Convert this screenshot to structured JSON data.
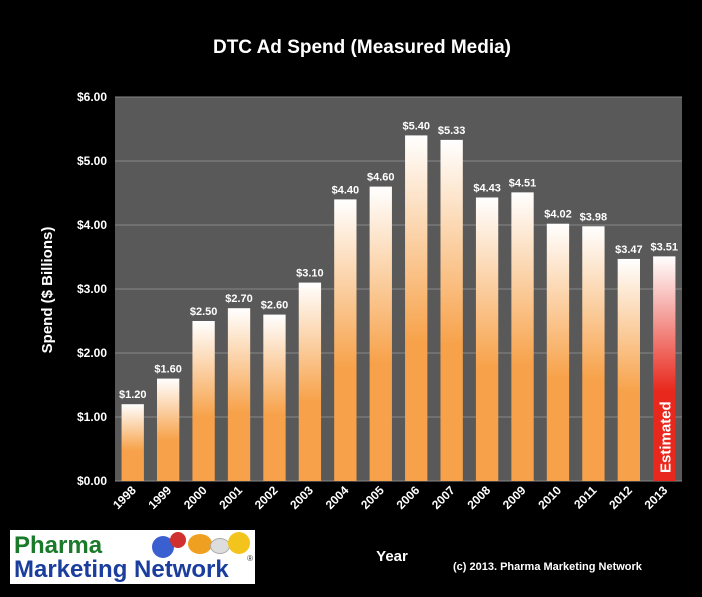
{
  "chart_data": {
    "type": "bar",
    "title": "DTC Ad Spend (Measured Media)",
    "xlabel": "Year",
    "ylabel": "Spend ($ Billions)",
    "ylim": [
      0,
      6
    ],
    "yticks": [
      "$0.00",
      "$1.00",
      "$2.00",
      "$3.00",
      "$4.00",
      "$5.00",
      "$6.00"
    ],
    "grid": true,
    "categories": [
      "1998",
      "1999",
      "2000",
      "2001",
      "2002",
      "2003",
      "2004",
      "2005",
      "2006",
      "2007",
      "2008",
      "2009",
      "2010",
      "2011",
      "2012",
      "2013"
    ],
    "values": [
      1.2,
      1.6,
      2.5,
      2.7,
      2.6,
      3.1,
      4.4,
      4.6,
      5.4,
      5.33,
      4.43,
      4.51,
      4.02,
      3.98,
      3.47,
      3.51
    ],
    "labels": [
      "$1.20",
      "$1.60",
      "$2.50",
      "$2.70",
      "$2.60",
      "$3.10",
      "$4.40",
      "$4.60",
      "$5.40",
      "$5.33",
      "$4.43",
      "$4.51",
      "$4.02",
      "$3.98",
      "$3.47",
      "$3.51"
    ],
    "estimated_index": 15,
    "estimated_label": "Estimated",
    "colors": {
      "bar_top": "#ffffff",
      "bar_bottom": "#f7a24a",
      "estimated_bar": "#e8281c",
      "plot_bg": "#595959",
      "grid": "#888888",
      "text": "#ffffff"
    }
  },
  "logo": {
    "line1": "Pharma",
    "line2": "Marketing Network",
    "reg": "®"
  },
  "footer": {
    "copyright": "(c) 2013. Pharma Marketing Network"
  }
}
